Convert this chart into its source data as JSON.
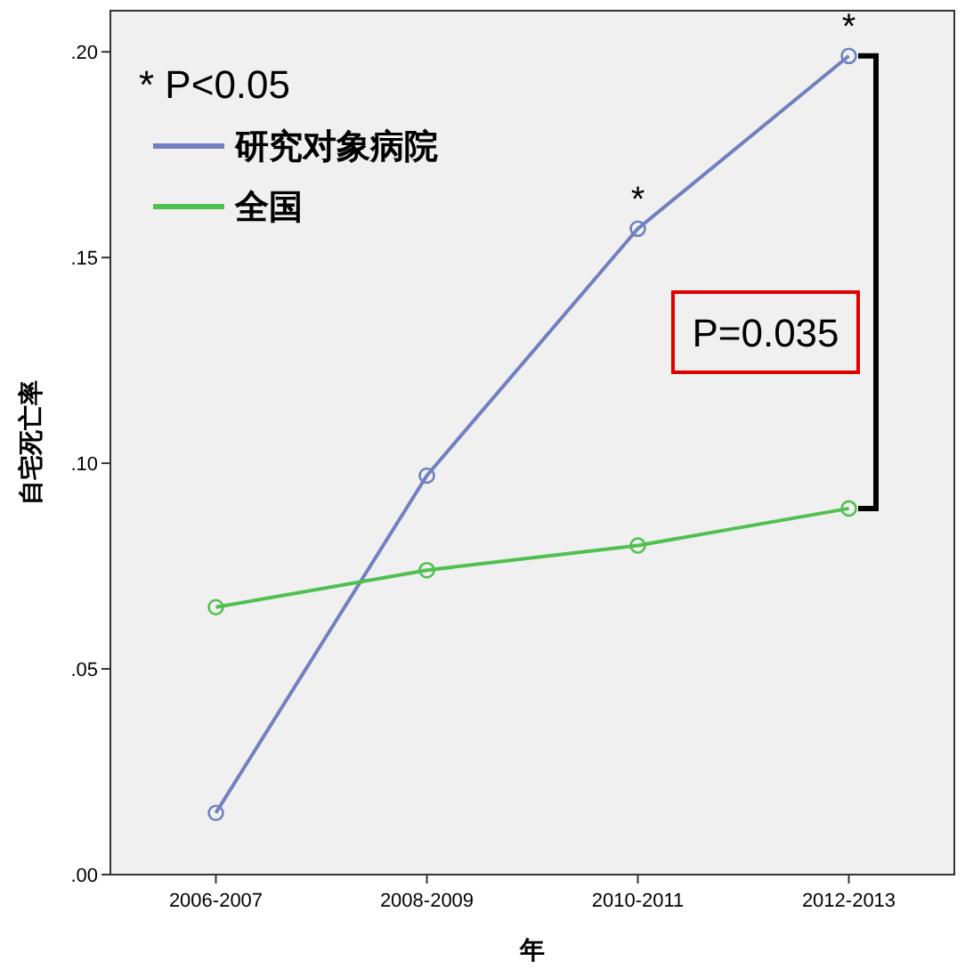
{
  "chart_data": {
    "type": "line",
    "xlabel": "年",
    "ylabel": "自宅死亡率",
    "categories": [
      "2006-2007",
      "2008-2009",
      "2010-2011",
      "2012-2013"
    ],
    "series": [
      {
        "name": "研究对象病院",
        "color": "#7080c0",
        "values": [
          0.015,
          0.097,
          0.157,
          0.199
        ]
      },
      {
        "name": "全国",
        "color": "#50c050",
        "values": [
          0.065,
          0.074,
          0.08,
          0.089
        ]
      }
    ],
    "ylim": [
      0,
      0.21
    ],
    "yticks": [
      {
        "value": 0,
        "label": ".00"
      },
      {
        "value": 0.05,
        "label": ".05"
      },
      {
        "value": 0.1,
        "label": ".10"
      },
      {
        "value": 0.15,
        "label": ".15"
      },
      {
        "value": 0.2,
        "label": ".20"
      }
    ],
    "marker": "circle",
    "grid": false,
    "legend": "top left",
    "annotations": [
      "* P<0.05",
      {
        "text": "*",
        "x": "2010-2011",
        "y": 0.157
      },
      {
        "text": "*",
        "x": "2012-2013",
        "y": 0.199
      },
      "P=0.035"
    ]
  }
}
